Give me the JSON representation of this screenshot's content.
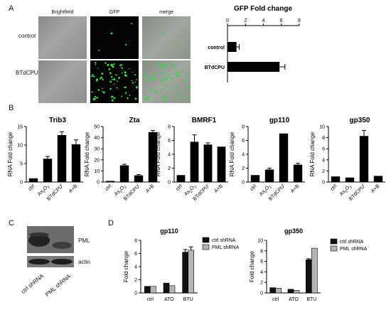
{
  "panel_labels": {
    "a": "A",
    "b": "B",
    "c": "C",
    "d": "D"
  },
  "panel_a": {
    "column_headers": [
      "Brightfield",
      "GFP",
      "merge"
    ],
    "row_labels": [
      "control",
      "BTdCPU"
    ]
  },
  "panel_c": {
    "bands": [
      "PML",
      "actin"
    ],
    "lanes": [
      "ctrl shRNA",
      "PML shRNA"
    ]
  },
  "chart_data": [
    {
      "type": "bar",
      "orientation": "horizontal",
      "title": "GFP Fold change",
      "categories": [
        "control",
        "BTdCPU"
      ],
      "values": [
        1.0,
        5.8
      ],
      "errors": [
        0.3,
        0.6
      ],
      "xlim": [
        0,
        8
      ],
      "ticks": [
        0,
        2,
        4,
        6,
        8
      ],
      "grid": false
    },
    {
      "type": "bar",
      "title": "Trib3",
      "ylabel": "RNA Fold change",
      "categories": [
        "ctrl",
        "As2O3",
        "BTdCPU",
        "A+B"
      ],
      "values": [
        1.0,
        6.3,
        12.7,
        10.2
      ],
      "errors": [
        0,
        0.6,
        0.9,
        1.2
      ],
      "ylim": [
        0,
        15
      ],
      "ticks": [
        0,
        5,
        10,
        15
      ],
      "grid": false
    },
    {
      "type": "bar",
      "title": "Zta",
      "ylabel": "RNA Fold change",
      "categories": [
        "ctrl",
        "As2O3",
        "BTdCPU",
        "A+B"
      ],
      "values": [
        1.0,
        15.0,
        6.0,
        45.0
      ],
      "errors": [
        0,
        1.0,
        0.7,
        1.5
      ],
      "ylim": [
        0,
        50
      ],
      "ticks": [
        0,
        10,
        20,
        30,
        40,
        50
      ],
      "grid": false
    },
    {
      "type": "bar",
      "title": "BMRF1",
      "ylabel": "RNA Fold change",
      "categories": [
        "ctrl",
        "As2O3",
        "BTdCPU",
        "A+B"
      ],
      "values": [
        1.0,
        5.8,
        5.4,
        5.1
      ],
      "errors": [
        0,
        1.0,
        0.25,
        0
      ],
      "ylim": [
        0,
        8
      ],
      "ticks": [
        0,
        2,
        4,
        6,
        8
      ],
      "grid": false
    },
    {
      "type": "bar",
      "title": "gp110",
      "ylabel": "RNA Fold change",
      "categories": [
        "ctrl",
        "As2O3",
        "BTdCPU",
        "A+B"
      ],
      "values": [
        1.0,
        1.8,
        7.0,
        2.5
      ],
      "errors": [
        0,
        0.2,
        0,
        0.2
      ],
      "ylim": [
        0,
        8
      ],
      "ticks": [
        0,
        2,
        4,
        6,
        8
      ],
      "grid": false
    },
    {
      "type": "bar",
      "title": "gp350",
      "ylabel": "RNA Fold change",
      "categories": [
        "ctrl",
        "As2O3",
        "BTdCPU",
        "A+B"
      ],
      "values": [
        1.0,
        0.8,
        8.3,
        1.1
      ],
      "errors": [
        0,
        0,
        1.0,
        0
      ],
      "ylim": [
        0,
        10
      ],
      "ticks": [
        0,
        2,
        4,
        6,
        8,
        10
      ],
      "grid": false
    },
    {
      "type": "bar",
      "title": "gp110",
      "ylabel": "Fold change",
      "categories": [
        "ctrl",
        "ATO",
        "BTU"
      ],
      "series": [
        {
          "name": "ctrl shRNA",
          "values": [
            1.0,
            1.5,
            6.2
          ],
          "errors": [
            0,
            0,
            0.4
          ],
          "color": "#111111"
        },
        {
          "name": "PML shRNA",
          "values": [
            1.0,
            1.1,
            6.5
          ],
          "errors": [
            0,
            0,
            0.5
          ],
          "color": "#b5b5b5"
        }
      ],
      "ylim": [
        0,
        8
      ],
      "ticks": [
        0,
        2,
        4,
        6,
        8
      ],
      "legend": "top-right",
      "grid": false
    },
    {
      "type": "bar",
      "title": "gp350",
      "ylabel": "Fold change",
      "categories": [
        "ctrl",
        "ATO",
        "BTU"
      ],
      "series": [
        {
          "name": "ctrl shRNA",
          "values": [
            1.0,
            0.7,
            6.3
          ],
          "errors": [
            0,
            0,
            0.2
          ],
          "color": "#111111"
        },
        {
          "name": "PML shRNA",
          "values": [
            0.9,
            0.5,
            8.5
          ],
          "errors": [
            0,
            0,
            0
          ],
          "color": "#b5b5b5"
        }
      ],
      "ylim": [
        0,
        10
      ],
      "ticks": [
        0,
        2,
        4,
        6,
        8,
        10
      ],
      "legend": "top-right",
      "grid": false
    }
  ]
}
